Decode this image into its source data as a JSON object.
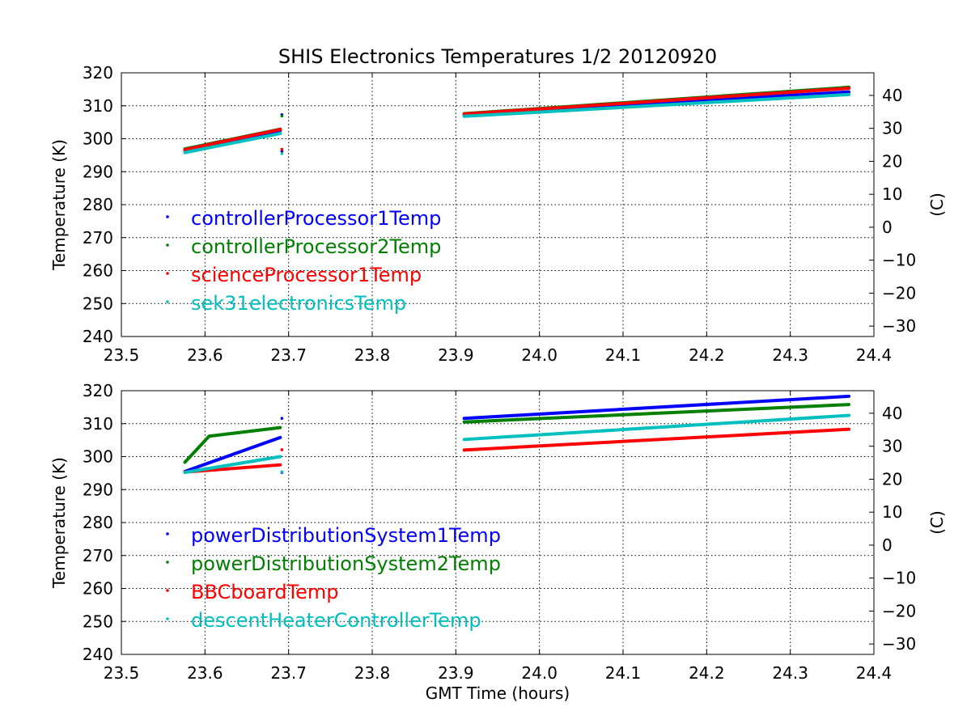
{
  "title": "SHIS Electronics Temperatures 1/2 20120920",
  "xlabel": "GMT Time (hours)",
  "colors": {
    "blue": "#0000ff",
    "green": "#008000",
    "red": "#ff0000",
    "cyan": "#00bfbf"
  },
  "chart_data": [
    {
      "type": "scatter",
      "title": "SHIS Electronics Temperatures 1/2 20120920",
      "xlabel": "",
      "ylabel": "Temperature (K)",
      "ylabel_right": "(C)",
      "xlim": [
        23.5,
        24.4
      ],
      "ylim": [
        240,
        320
      ],
      "xticks": [
        23.5,
        23.6,
        23.7,
        23.8,
        23.9,
        24.0,
        24.1,
        24.2,
        24.3,
        24.4
      ],
      "xtick_labels": [
        "23.5",
        "23.6",
        "23.7",
        "23.8",
        "23.9",
        "24.0",
        "24.1",
        "24.2",
        "24.3",
        "24.4"
      ],
      "yticks": [
        240,
        250,
        260,
        270,
        280,
        290,
        300,
        310,
        320
      ],
      "ytick_labels": [
        "240",
        "250",
        "260",
        "270",
        "280",
        "290",
        "300",
        "310",
        "320"
      ],
      "yticks_right": [
        -30,
        -20,
        -10,
        0,
        10,
        20,
        30,
        40
      ],
      "ytick_right_labels": [
        "−30",
        "−20",
        "−10",
        "0",
        "10",
        "20",
        "30",
        "40"
      ],
      "grid": true,
      "legend_position": "center-left",
      "series": [
        {
          "name": "controllerProcessor1Temp",
          "color": "blue",
          "segments": [
            {
              "x0": 23.576,
              "x1": 23.69,
              "y0": 296.6,
              "y1": 302.5
            },
            {
              "x0": 23.91,
              "x1": 24.37,
              "y0": 307.2,
              "y1": 314.2
            }
          ],
          "outliers": [
            {
              "x": 23.692,
              "y": 307.3
            },
            {
              "x": 23.692,
              "y": 296.2
            }
          ]
        },
        {
          "name": "controllerProcessor2Temp",
          "color": "green",
          "segments": [
            {
              "x0": 23.576,
              "x1": 23.69,
              "y0": 296.9,
              "y1": 302.9
            },
            {
              "x0": 23.91,
              "x1": 24.37,
              "y0": 307.6,
              "y1": 315.6
            }
          ],
          "outliers": [
            {
              "x": 23.692,
              "y": 306.9
            }
          ]
        },
        {
          "name": "scienceProcessor1Temp",
          "color": "red",
          "segments": [
            {
              "x0": 23.576,
              "x1": 23.69,
              "y0": 296.7,
              "y1": 302.8
            },
            {
              "x0": 23.91,
              "x1": 24.37,
              "y0": 307.5,
              "y1": 315.3
            }
          ],
          "outliers": [
            {
              "x": 23.692,
              "y": 296.8
            }
          ]
        },
        {
          "name": "sek31electronicsTemp",
          "color": "cyan",
          "segments": [
            {
              "x0": 23.576,
              "x1": 23.69,
              "y0": 295.8,
              "y1": 301.6
            },
            {
              "x0": 23.91,
              "x1": 24.37,
              "y0": 306.8,
              "y1": 313.4
            }
          ],
          "outliers": [
            {
              "x": 23.692,
              "y": 295.5
            }
          ]
        }
      ]
    },
    {
      "type": "scatter",
      "title": "",
      "xlabel": "GMT Time (hours)",
      "ylabel": "Temperature (K)",
      "ylabel_right": "(C)",
      "xlim": [
        23.5,
        24.4
      ],
      "ylim": [
        240,
        320
      ],
      "xticks": [
        23.5,
        23.6,
        23.7,
        23.8,
        23.9,
        24.0,
        24.1,
        24.2,
        24.3,
        24.4
      ],
      "xtick_labels": [
        "23.5",
        "23.6",
        "23.7",
        "23.8",
        "23.9",
        "24.0",
        "24.1",
        "24.2",
        "24.3",
        "24.4"
      ],
      "yticks": [
        240,
        250,
        260,
        270,
        280,
        290,
        300,
        310,
        320
      ],
      "ytick_labels": [
        "240",
        "250",
        "260",
        "270",
        "280",
        "290",
        "300",
        "310",
        "320"
      ],
      "yticks_right": [
        -30,
        -20,
        -10,
        0,
        10,
        20,
        30,
        40
      ],
      "ytick_right_labels": [
        "−30",
        "−20",
        "−10",
        "0",
        "10",
        "20",
        "30",
        "40"
      ],
      "grid": true,
      "legend_position": "center-left",
      "series": [
        {
          "name": "powerDistributionSystem1Temp",
          "color": "blue",
          "segments": [
            {
              "x0": 23.576,
              "x1": 23.69,
              "y0": 295.5,
              "y1": 305.8
            },
            {
              "x0": 23.91,
              "x1": 24.37,
              "y0": 311.6,
              "y1": 318.3
            }
          ],
          "outliers": [
            {
              "x": 23.692,
              "y": 311.6
            },
            {
              "x": 23.692,
              "y": 295.2
            }
          ]
        },
        {
          "name": "powerDistributionSystem2Temp",
          "color": "green",
          "segments": [
            {
              "x0": 23.576,
              "x1": 23.605,
              "y0": 298.3,
              "y1": 306.2
            },
            {
              "x0": 23.605,
              "x1": 23.69,
              "y0": 306.2,
              "y1": 308.8
            },
            {
              "x0": 23.91,
              "x1": 24.37,
              "y0": 310.5,
              "y1": 315.8
            }
          ],
          "outliers": []
        },
        {
          "name": "BBCboardTemp",
          "color": "red",
          "segments": [
            {
              "x0": 23.576,
              "x1": 23.69,
              "y0": 295.3,
              "y1": 297.5
            },
            {
              "x0": 23.91,
              "x1": 24.37,
              "y0": 302.0,
              "y1": 308.3
            }
          ],
          "outliers": [
            {
              "x": 23.692,
              "y": 302.1
            }
          ]
        },
        {
          "name": "descentHeaterControllerTemp",
          "color": "cyan",
          "segments": [
            {
              "x0": 23.576,
              "x1": 23.69,
              "y0": 295.2,
              "y1": 300.0
            },
            {
              "x0": 23.91,
              "x1": 24.37,
              "y0": 305.2,
              "y1": 312.5
            }
          ],
          "outliers": [
            {
              "x": 23.692,
              "y": 295.4
            }
          ]
        }
      ]
    }
  ]
}
